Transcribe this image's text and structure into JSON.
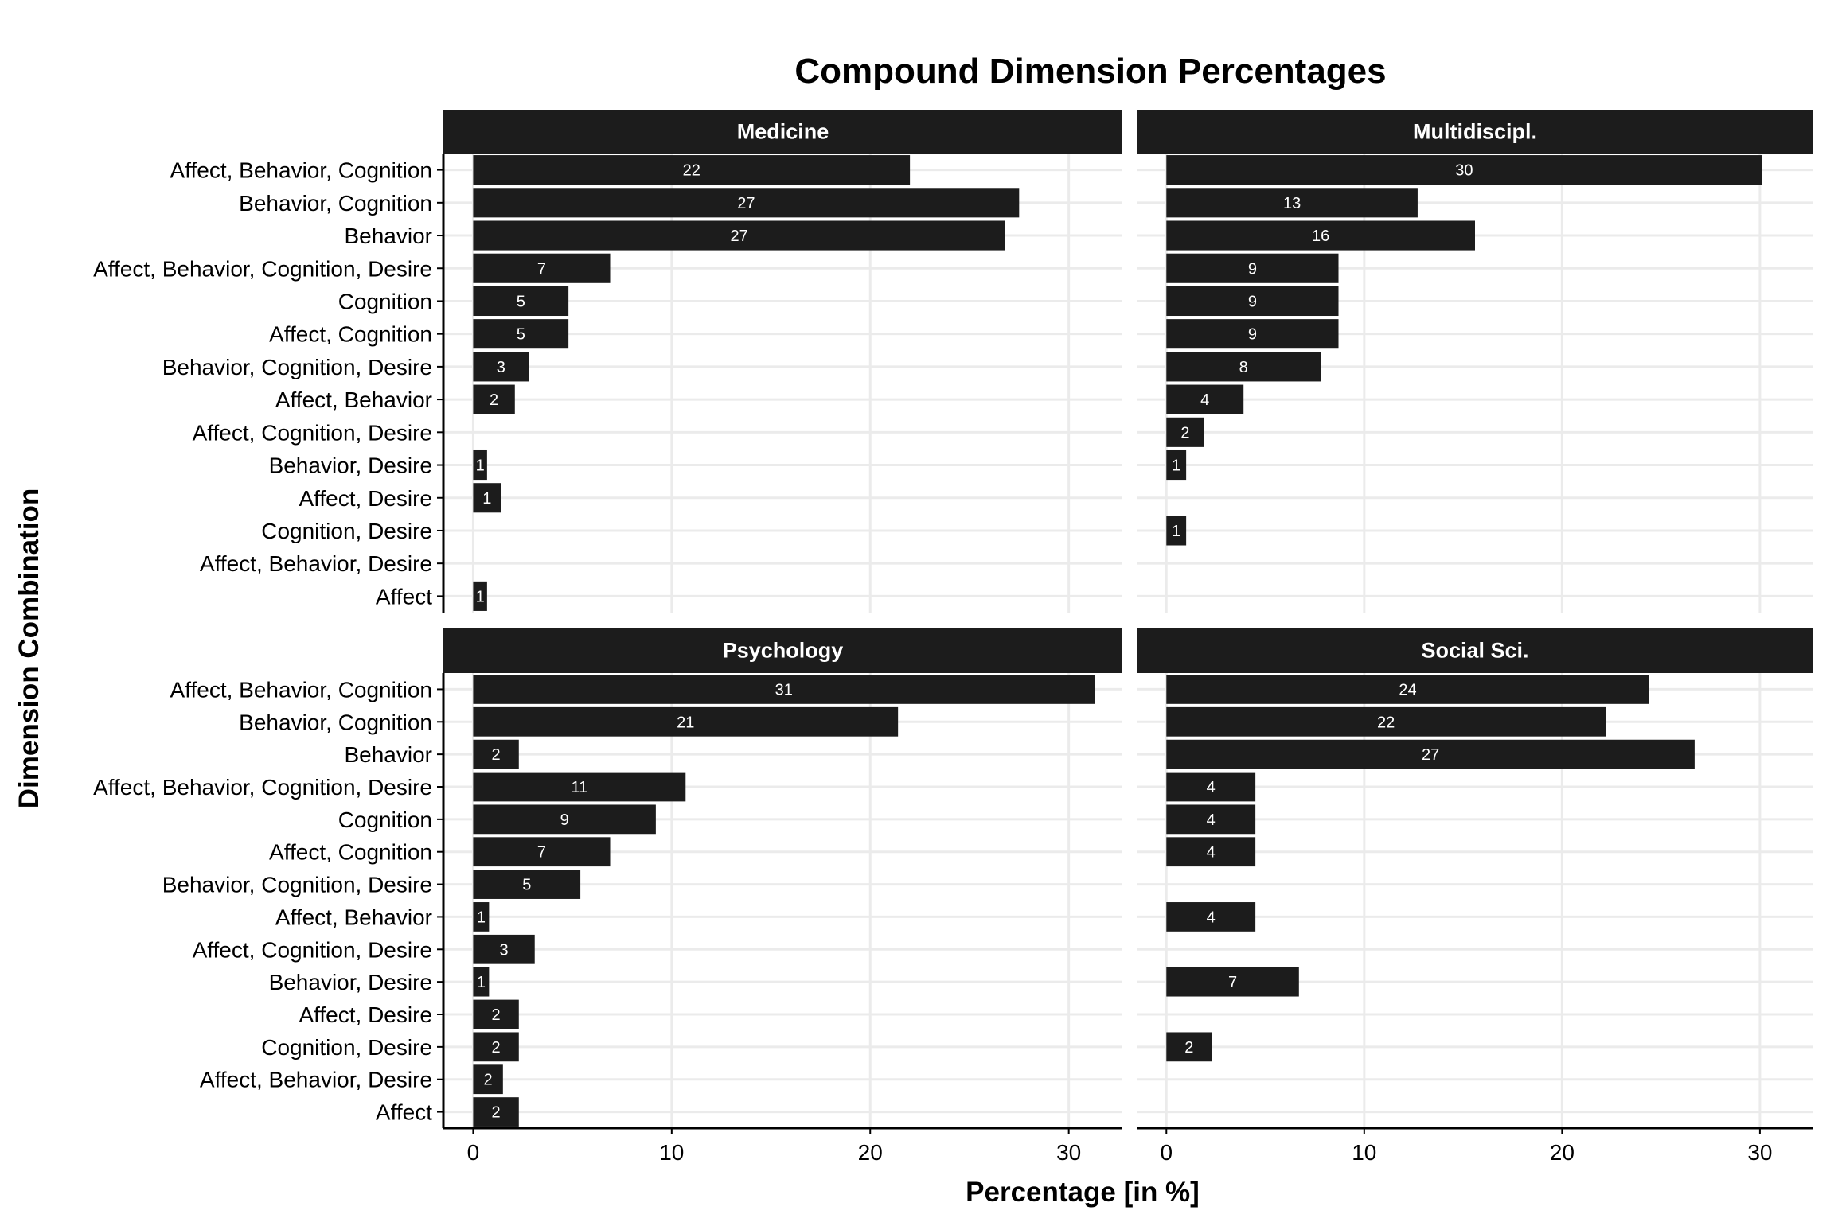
{
  "chart_data": {
    "type": "bar",
    "orientation": "horizontal",
    "title": "Compound Dimension Percentages",
    "xlabel": "Percentage [in %]",
    "ylabel": "Dimension Combination",
    "xlim": [
      -1.5,
      32.7
    ],
    "xticks": [
      0,
      10,
      20,
      30
    ],
    "grid": true,
    "categories": [
      "Affect, Behavior, Cognition",
      "Behavior, Cognition",
      "Behavior",
      "Affect, Behavior, Cognition, Desire",
      "Cognition",
      "Affect, Cognition",
      "Behavior, Cognition, Desire",
      "Affect, Behavior",
      "Affect, Cognition, Desire",
      "Behavior, Desire",
      "Affect, Desire",
      "Cognition, Desire",
      "Affect, Behavior, Desire",
      "Affect"
    ],
    "panels": [
      {
        "name": "Medicine",
        "values": [
          22.0,
          27.5,
          26.8,
          6.9,
          4.8,
          4.8,
          2.8,
          2.1,
          null,
          0.7,
          1.4,
          null,
          null,
          0.7
        ],
        "labels": [
          "22",
          "27",
          "27",
          "7",
          "5",
          "5",
          "3",
          "2",
          "",
          "1",
          "1",
          "",
          "",
          "1"
        ]
      },
      {
        "name": "Multidiscipl.",
        "values": [
          30.1,
          12.7,
          15.6,
          8.7,
          8.7,
          8.7,
          7.8,
          3.9,
          1.9,
          1.0,
          null,
          1.0,
          null,
          null
        ],
        "labels": [
          "30",
          "13",
          "16",
          "9",
          "9",
          "9",
          "8",
          "4",
          "2",
          "1",
          "",
          "1",
          "",
          ""
        ]
      },
      {
        "name": "Psychology",
        "values": [
          31.3,
          21.4,
          2.3,
          10.7,
          9.2,
          6.9,
          5.4,
          0.8,
          3.1,
          0.8,
          2.3,
          2.3,
          1.5,
          2.3
        ],
        "labels": [
          "31",
          "21",
          "2",
          "11",
          "9",
          "7",
          "5",
          "1",
          "3",
          "1",
          "2",
          "2",
          "2",
          "2"
        ]
      },
      {
        "name": "Social Sci.",
        "values": [
          24.4,
          22.2,
          26.7,
          4.5,
          4.5,
          4.5,
          null,
          4.5,
          null,
          6.7,
          null,
          2.3,
          null,
          null
        ],
        "labels": [
          "24",
          "22",
          "27",
          "4",
          "4",
          "4",
          "",
          "4",
          "",
          "7",
          "",
          "2",
          "",
          ""
        ]
      }
    ]
  }
}
